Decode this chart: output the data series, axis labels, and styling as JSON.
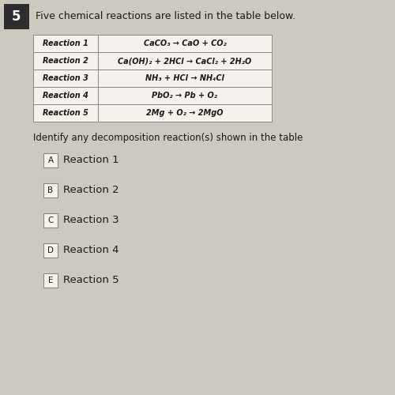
{
  "question_number": "5",
  "question_text": "Five chemical reactions are listed in the table below.",
  "table_rows": [
    [
      "Reaction 1",
      "CaCO₃ → CaO + CO₂"
    ],
    [
      "Reaction 2",
      "Ca(OH)₂ + 2HCl → CaCl₂ + 2H₂O"
    ],
    [
      "Reaction 3",
      "NH₃ + HCl → NH₄Cl"
    ],
    [
      "Reaction 4",
      "PbO₂ → Pb + O₂"
    ],
    [
      "Reaction 5",
      "2Mg + O₂ → 2MgO"
    ]
  ],
  "sub_question": "Identify any decomposition reaction(s) shown in the table",
  "options": [
    [
      "A",
      "Reaction 1"
    ],
    [
      "B",
      "Reaction 2"
    ],
    [
      "C",
      "Reaction 3"
    ],
    [
      "D",
      "Reaction 4"
    ],
    [
      "E",
      "Reaction 5"
    ]
  ],
  "bg_color": "#cdc8c0",
  "table_cell_bg": "#f5f2ee",
  "text_color": "#1a1a1a",
  "border_color": "#888888",
  "qnum_bg": "#2d2d2d",
  "option_text_color": "#2a3a6a"
}
